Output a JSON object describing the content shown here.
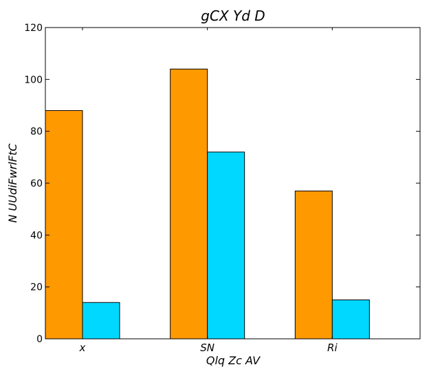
{
  "chart_data": {
    "type": "bar",
    "title": "gCX Yd  D",
    "xlabel": "Qlq Zc AV",
    "ylabel": "N UUdiFwrlFtC",
    "categories": [
      "x",
      "SN",
      "Ri"
    ],
    "series": [
      {
        "values": [
          88,
          104,
          57
        ],
        "color": "#ff9900"
      },
      {
        "values": [
          14,
          72,
          15
        ],
        "color": "#00d8ff"
      }
    ],
    "ylim": [
      0,
      120
    ],
    "yticks": [
      0,
      20,
      40,
      60,
      80,
      100,
      120
    ],
    "grid": false,
    "legend": "none"
  }
}
